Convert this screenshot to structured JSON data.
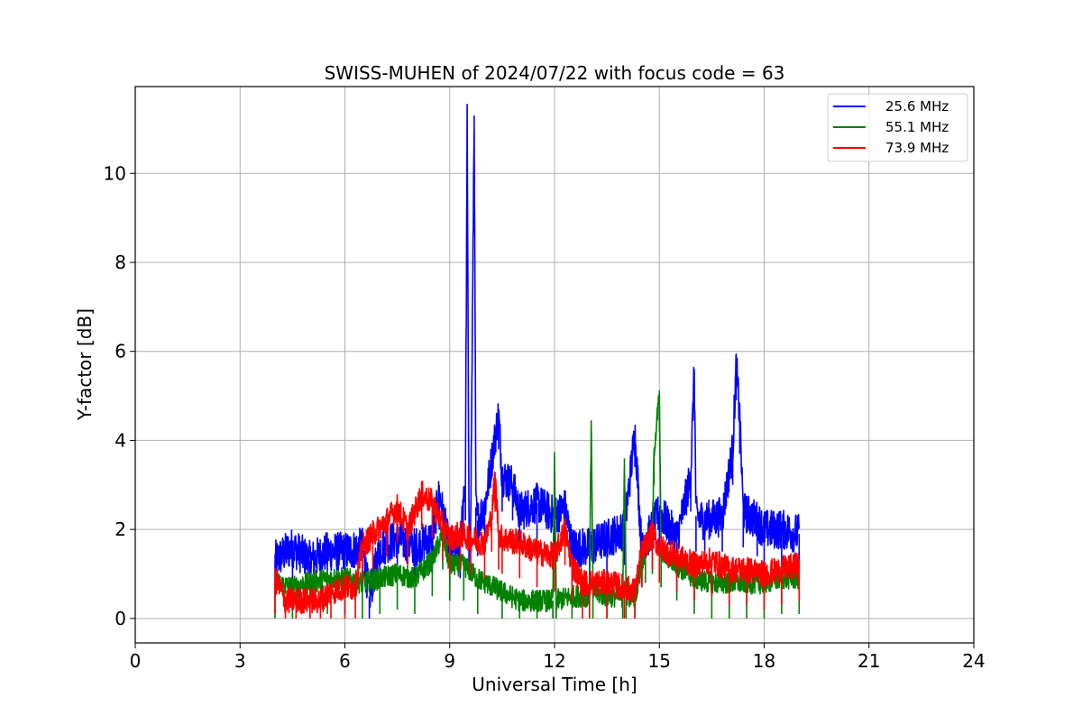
{
  "chart_data": {
    "type": "line",
    "title": "SWISS-MUHEN of 2024/07/22 with focus code = 63",
    "xlabel": "Universal Time [h]",
    "ylabel": "Y-factor [dB]",
    "xlim": [
      0,
      24
    ],
    "ylim": [
      -0.55,
      11.95
    ],
    "xticks": [
      0,
      3,
      6,
      9,
      12,
      15,
      18,
      21,
      24
    ],
    "yticks": [
      0,
      2,
      4,
      6,
      8,
      10
    ],
    "grid": true,
    "legend_position": "upper-right",
    "series": [
      {
        "name": "25.6 MHz",
        "color": "#0000ff",
        "x": [
          4.0,
          4.5,
          5.0,
          5.5,
          6.0,
          6.5,
          6.7,
          7.0,
          7.5,
          8.0,
          8.5,
          8.7,
          9.0,
          9.3,
          9.45,
          9.5,
          9.55,
          9.6,
          9.7,
          9.75,
          9.8,
          10.0,
          10.4,
          10.5,
          10.8,
          11.0,
          11.5,
          12.0,
          12.3,
          12.5,
          13.0,
          13.5,
          14.0,
          14.3,
          14.5,
          15.0,
          15.5,
          15.9,
          16.0,
          16.05,
          16.3,
          16.8,
          17.1,
          17.2,
          17.3,
          17.4,
          17.8,
          18.0,
          18.5,
          19.0
        ],
        "y": [
          1.3,
          1.6,
          1.3,
          1.5,
          1.5,
          1.6,
          0.5,
          1.6,
          1.8,
          1.6,
          1.8,
          2.8,
          1.5,
          1.7,
          3.0,
          11.2,
          2.0,
          2.0,
          11.3,
          2.5,
          2.2,
          2.5,
          4.6,
          3.2,
          3.0,
          2.4,
          2.6,
          2.3,
          2.5,
          1.6,
          1.6,
          1.8,
          2.0,
          4.2,
          1.5,
          2.4,
          1.8,
          3.2,
          5.6,
          2.3,
          2.2,
          2.3,
          3.8,
          5.7,
          4.5,
          2.4,
          2.2,
          2.0,
          2.0,
          1.9
        ]
      },
      {
        "name": "55.1 MHz",
        "color": "#008000",
        "x": [
          4.0,
          4.5,
          5.0,
          5.5,
          6.0,
          6.5,
          7.0,
          7.5,
          8.0,
          8.5,
          8.8,
          9.0,
          9.4,
          9.8,
          10.5,
          11.0,
          11.5,
          11.95,
          12.0,
          12.05,
          12.5,
          13.0,
          13.05,
          13.1,
          13.5,
          13.95,
          14.0,
          14.05,
          14.3,
          14.6,
          14.8,
          14.85,
          15.0,
          15.05,
          15.5,
          16.0,
          16.5,
          17.0,
          17.5,
          18.0,
          18.5,
          19.0
        ],
        "y": [
          0.8,
          0.7,
          0.8,
          0.9,
          0.9,
          0.8,
          0.9,
          1.0,
          0.9,
          1.3,
          1.9,
          1.2,
          1.2,
          0.9,
          0.6,
          0.4,
          0.4,
          0.4,
          3.5,
          0.4,
          0.5,
          0.5,
          4.4,
          0.6,
          0.5,
          0.5,
          3.6,
          0.5,
          0.5,
          1.6,
          1.8,
          3.8,
          5.0,
          1.5,
          1.2,
          0.9,
          0.8,
          0.8,
          0.8,
          0.8,
          0.9,
          0.9
        ]
      },
      {
        "name": "73.9 MHz",
        "color": "#ff0000",
        "x": [
          4.0,
          4.3,
          4.6,
          5.0,
          5.3,
          5.6,
          6.0,
          6.3,
          6.5,
          6.8,
          7.2,
          7.5,
          7.8,
          8.2,
          8.5,
          8.8,
          9.0,
          9.3,
          9.6,
          10.0,
          10.2,
          10.3,
          10.4,
          10.5,
          11.0,
          11.5,
          12.0,
          12.3,
          12.5,
          12.8,
          13.0,
          13.5,
          14.0,
          14.3,
          14.5,
          14.8,
          15.0,
          15.5,
          16.0,
          16.5,
          17.0,
          17.5,
          18.0,
          18.5,
          19.0
        ],
        "y": [
          0.9,
          0.4,
          0.4,
          0.4,
          0.4,
          0.6,
          0.7,
          0.7,
          1.6,
          1.9,
          2.2,
          2.5,
          2.0,
          2.8,
          2.6,
          2.1,
          1.8,
          1.9,
          1.8,
          1.7,
          2.3,
          3.2,
          1.9,
          1.8,
          1.7,
          1.5,
          1.4,
          2.0,
          1.2,
          0.8,
          0.8,
          0.8,
          0.7,
          0.6,
          1.5,
          1.9,
          1.6,
          1.4,
          1.2,
          1.3,
          1.1,
          1.1,
          1.0,
          1.1,
          1.2
        ]
      }
    ]
  }
}
